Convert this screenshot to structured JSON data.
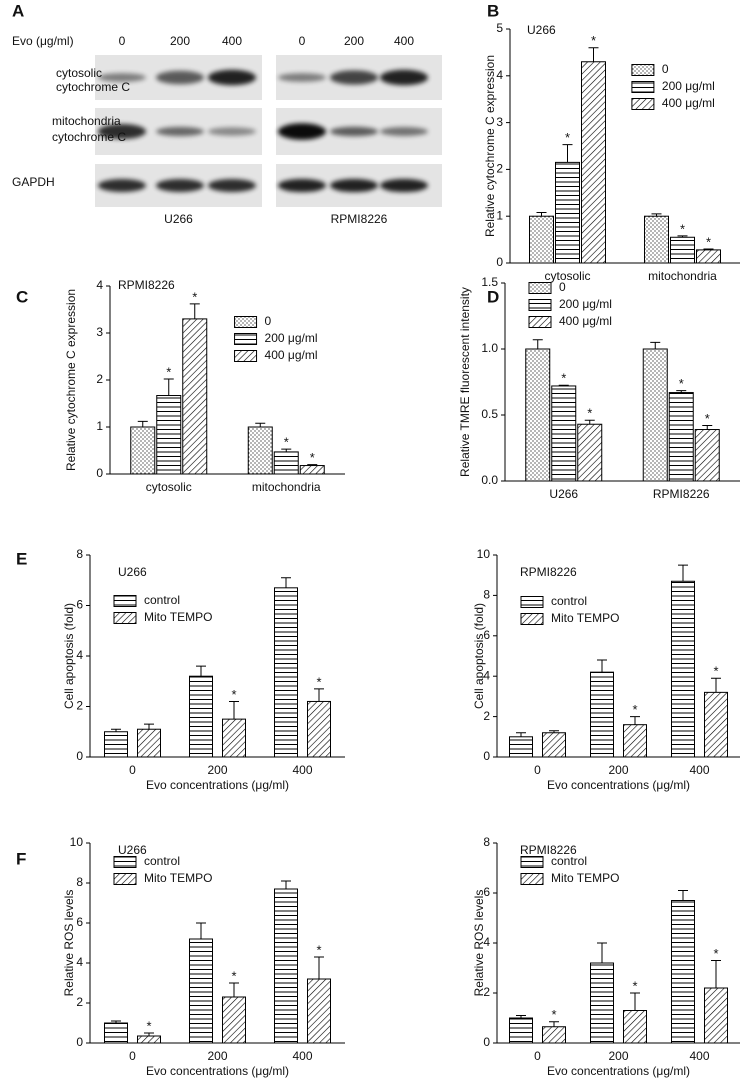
{
  "blot": {
    "panel": "A",
    "treatment_label": "Evo (μg/ml)",
    "lanes": [
      "0",
      "200",
      "400"
    ],
    "rows": [
      [
        "cytosolic",
        "cytochrome C"
      ],
      [
        "mitochondria",
        "cytochrome C"
      ],
      [
        "GAPDH"
      ]
    ],
    "cell_lines": [
      "U266",
      "RPMI8226"
    ]
  },
  "chart_data": [
    {
      "type": "bar",
      "panel": "B",
      "title": "U266",
      "y_label": "Relative cytochrome C expression",
      "categories": [
        "cytosolic",
        "mitochondria"
      ],
      "ylim": [
        0,
        5
      ],
      "yticks": [
        0,
        1,
        2,
        3,
        4,
        5
      ],
      "legend": "upper-right",
      "series": [
        {
          "name": "0",
          "pattern": "dots",
          "color": "#000000",
          "values": [
            1.0,
            1.0
          ],
          "errors": [
            0.08,
            0.05
          ],
          "significance": [
            null,
            null
          ]
        },
        {
          "name": "200 μg/ml",
          "pattern": "hlines",
          "color": "#000000",
          "values": [
            2.15,
            0.55
          ],
          "errors": [
            0.38,
            0.03
          ],
          "significance": [
            "*",
            "*"
          ]
        },
        {
          "name": "400 μg/ml",
          "pattern": "hatch",
          "color": "#000000",
          "values": [
            4.3,
            0.28
          ],
          "errors": [
            0.3,
            0.02
          ],
          "significance": [
            "*",
            "*"
          ]
        }
      ]
    },
    {
      "type": "bar",
      "panel": "C",
      "title": "RPMI8226",
      "y_label": "Relative cytochrome C expression",
      "categories": [
        "cytosolic",
        "mitochondria"
      ],
      "ylim": [
        0,
        4
      ],
      "yticks": [
        0,
        1,
        2,
        3,
        4
      ],
      "legend": "upper-right",
      "series": [
        {
          "name": "0",
          "pattern": "dots",
          "color": "#000000",
          "values": [
            1.0,
            1.0
          ],
          "errors": [
            0.12,
            0.08
          ],
          "significance": [
            null,
            null
          ]
        },
        {
          "name": "200 μg/ml",
          "pattern": "hlines",
          "color": "#000000",
          "values": [
            1.67,
            0.47
          ],
          "errors": [
            0.35,
            0.06
          ],
          "significance": [
            "*",
            "*"
          ]
        },
        {
          "name": "400 μg/ml",
          "pattern": "hatch",
          "color": "#000000",
          "values": [
            3.3,
            0.18
          ],
          "errors": [
            0.32,
            0.02
          ],
          "significance": [
            "*",
            "*"
          ]
        }
      ]
    },
    {
      "type": "bar",
      "panel": "D",
      "y_label": "Relative TMRE fluorescent intensity",
      "categories": [
        "U266",
        "RPMI8226"
      ],
      "ylim": [
        0,
        1.5
      ],
      "yticks": [
        {
          "value": 0,
          "label": "0.0"
        },
        0.5,
        {
          "value": 1,
          "label": "1.0"
        },
        1.5
      ],
      "legend": "upper-left",
      "series": [
        {
          "name": "0",
          "pattern": "dots",
          "color": "#000000",
          "values": [
            1.0,
            1.0
          ],
          "errors": [
            0.07,
            0.05
          ],
          "significance": [
            null,
            null
          ]
        },
        {
          "name": "200 μg/ml",
          "pattern": "hlines",
          "color": "#000000",
          "values": [
            0.72,
            0.67
          ],
          "errors": [
            0.005,
            0.015
          ],
          "significance": [
            "*",
            "*"
          ]
        },
        {
          "name": "400 μg/ml",
          "pattern": "hatch",
          "color": "#000000",
          "values": [
            0.43,
            0.39
          ],
          "errors": [
            0.03,
            0.03
          ],
          "significance": [
            "*",
            "*"
          ]
        }
      ]
    },
    {
      "type": "bar",
      "panel": "E",
      "title": "U266",
      "y_label": "Cell apoptosis (fold)",
      "x_label": "Evo concentrations (μg/ml)",
      "categories": [
        "0",
        "200",
        "400"
      ],
      "ylim": [
        0,
        8
      ],
      "yticks": [
        0,
        2,
        4,
        6,
        8
      ],
      "legend": "upper-left",
      "series": [
        {
          "name": "control",
          "pattern": "hlines",
          "color": "#000000",
          "values": [
            1.0,
            3.2,
            6.7
          ],
          "errors": [
            0.1,
            0.4,
            0.4
          ],
          "significance": [
            null,
            null,
            null
          ]
        },
        {
          "name": "Mito TEMPO",
          "pattern": "hatch",
          "color": "#000000",
          "values": [
            1.1,
            1.5,
            2.2
          ],
          "errors": [
            0.2,
            0.7,
            0.5
          ],
          "significance": [
            null,
            "*",
            "*"
          ]
        }
      ]
    },
    {
      "type": "bar",
      "title": "RPMI8226",
      "y_label": "Cell apoptosis (fold)",
      "x_label": "Evo concentrations (μg/ml)",
      "categories": [
        "0",
        "200",
        "400"
      ],
      "ylim": [
        0,
        10
      ],
      "yticks": [
        0,
        2,
        4,
        6,
        8,
        10
      ],
      "legend": "upper-left",
      "series": [
        {
          "name": "control",
          "pattern": "hlines",
          "color": "#000000",
          "values": [
            1.0,
            4.2,
            8.7
          ],
          "errors": [
            0.2,
            0.6,
            0.8
          ],
          "significance": [
            null,
            null,
            null
          ]
        },
        {
          "name": "Mito TEMPO",
          "pattern": "hatch",
          "color": "#000000",
          "values": [
            1.2,
            1.6,
            3.2
          ],
          "errors": [
            0.1,
            0.4,
            0.7
          ],
          "significance": [
            null,
            "*",
            "*"
          ]
        }
      ]
    },
    {
      "type": "bar",
      "panel": "F",
      "title": "U266",
      "y_label": "Relative ROS levels",
      "x_label": "Evo concentrations (μg/ml)",
      "categories": [
        "0",
        "200",
        "400"
      ],
      "ylim": [
        0,
        10
      ],
      "yticks": [
        0,
        2,
        4,
        6,
        8,
        10
      ],
      "legend": "upper-left",
      "series": [
        {
          "name": "control",
          "pattern": "hlines",
          "color": "#000000",
          "values": [
            1.0,
            5.2,
            7.7
          ],
          "errors": [
            0.1,
            0.8,
            0.4
          ],
          "significance": [
            null,
            null,
            null
          ]
        },
        {
          "name": "Mito TEMPO",
          "pattern": "hatch",
          "color": "#000000",
          "values": [
            0.35,
            2.3,
            3.2
          ],
          "errors": [
            0.15,
            0.7,
            1.1
          ],
          "significance": [
            "*",
            "*",
            "*"
          ]
        }
      ]
    },
    {
      "type": "bar",
      "title": "RPMI8226",
      "y_label": "Relative ROS levels",
      "x_label": "Evo concentrations (μg/ml)",
      "categories": [
        "0",
        "200",
        "400"
      ],
      "ylim": [
        0,
        8
      ],
      "yticks": [
        0,
        2,
        4,
        6,
        8
      ],
      "legend": "upper-left",
      "series": [
        {
          "name": "control",
          "pattern": "hlines",
          "color": "#000000",
          "values": [
            1.0,
            3.2,
            5.7
          ],
          "errors": [
            0.1,
            0.8,
            0.4
          ],
          "significance": [
            null,
            null,
            null
          ]
        },
        {
          "name": "Mito TEMPO",
          "pattern": "hatch",
          "color": "#000000",
          "values": [
            0.65,
            1.3,
            2.2
          ],
          "errors": [
            0.2,
            0.7,
            1.1
          ],
          "significance": [
            "*",
            "*",
            "*"
          ]
        }
      ]
    }
  ]
}
